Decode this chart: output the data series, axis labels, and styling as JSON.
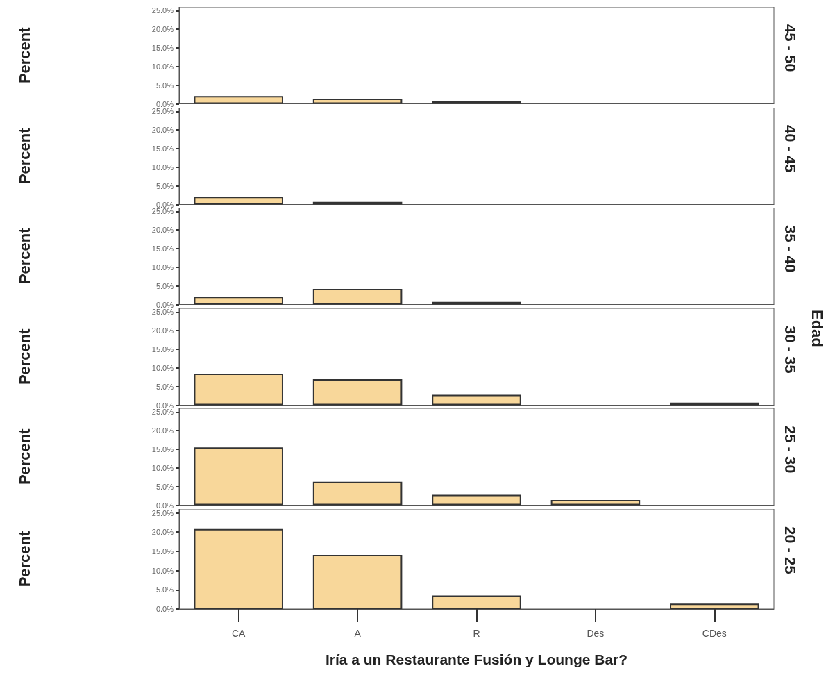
{
  "chart_data": [
    {
      "type": "bar",
      "ylabel": "Percent",
      "y2label": "45 - 50",
      "values": [
        2.1,
        1.4,
        0.7,
        null,
        null
      ],
      "color": "#f8d79a",
      "ylim": [
        0,
        26
      ],
      "yticks": [
        {
          "value": 0,
          "label": "0.0%"
        },
        {
          "value": 5,
          "label": "5.0%"
        },
        {
          "value": 10,
          "label": "10.0%"
        },
        {
          "value": 15,
          "label": "15.0%"
        },
        {
          "value": 20,
          "label": "20.0%"
        },
        {
          "value": 25,
          "label": "25.0%"
        }
      ],
      "tick_labels": "y"
    },
    {
      "type": "bar",
      "ylabel": "Percent",
      "y2label": "40 - 45",
      "values": [
        2.1,
        0.7,
        null,
        null,
        null
      ],
      "color": "#f8d79a",
      "ylim": [
        0,
        26
      ],
      "yticks": [
        {
          "value": 0,
          "label": "0.0%"
        },
        {
          "value": 5,
          "label": "5.0%"
        },
        {
          "value": 10,
          "label": "10.0%"
        },
        {
          "value": 15,
          "label": "15.0%"
        },
        {
          "value": 20,
          "label": "20.0%"
        },
        {
          "value": 25,
          "label": "25.0%"
        }
      ],
      "tick_labels": "y"
    },
    {
      "type": "bar",
      "ylabel": "Percent",
      "y2label": "35 - 40",
      "values": [
        2.1,
        4.2,
        0.7,
        null,
        null
      ],
      "color": "#f8d79a",
      "ylim": [
        0,
        26
      ],
      "yticks": [
        {
          "value": 0,
          "label": "0.0%"
        },
        {
          "value": 5,
          "label": "5.0%"
        },
        {
          "value": 10,
          "label": "10.0%"
        },
        {
          "value": 15,
          "label": "15.0%"
        },
        {
          "value": 20,
          "label": "20.0%"
        },
        {
          "value": 25,
          "label": "25.0%"
        }
      ],
      "tick_labels": "y"
    },
    {
      "type": "bar",
      "ylabel": "Percent",
      "y2label": "30 - 35",
      "annotations": [
        "Edad"
      ],
      "values": [
        8.5,
        7.0,
        2.8,
        null,
        0.7
      ],
      "color": "#f8d79a",
      "ylim": [
        0,
        26
      ],
      "yticks": [
        {
          "value": 0,
          "label": "0.0%"
        },
        {
          "value": 5,
          "label": "5.0%"
        },
        {
          "value": 10,
          "label": "10.0%"
        },
        {
          "value": 15,
          "label": "15.0%"
        },
        {
          "value": 20,
          "label": "20.0%"
        },
        {
          "value": 25,
          "label": "25.0%"
        }
      ],
      "tick_labels": "y"
    },
    {
      "type": "bar",
      "ylabel": "Percent",
      "y2label": "25 - 30",
      "values": [
        15.5,
        6.3,
        2.8,
        1.4,
        null
      ],
      "color": "#f8d79a",
      "ylim": [
        0,
        26
      ],
      "yticks": [
        {
          "value": 0,
          "label": "0.0%"
        },
        {
          "value": 5,
          "label": "5.0%"
        },
        {
          "value": 10,
          "label": "10.0%"
        },
        {
          "value": 15,
          "label": "15.0%"
        },
        {
          "value": 20,
          "label": "20.0%"
        },
        {
          "value": 25,
          "label": "25.0%"
        }
      ],
      "tick_labels": "y"
    },
    {
      "type": "bar",
      "ylabel": "Percent",
      "y2label": "20 - 25",
      "xlabel": "Iría a un Restaurante Fusión y Lounge Bar?",
      "categories": [
        "CA",
        "A",
        "R",
        "Des",
        "CDes"
      ],
      "values": [
        20.8,
        14.1,
        3.5,
        null,
        1.4
      ],
      "color": "#f8d79a",
      "ylim": [
        0,
        26
      ],
      "yticks": [
        {
          "value": 0,
          "label": "0.0%"
        },
        {
          "value": 5,
          "label": "5.0%"
        },
        {
          "value": 10,
          "label": "10.0%"
        },
        {
          "value": 15,
          "label": "15.0%"
        },
        {
          "value": 20,
          "label": "20.0%"
        },
        {
          "value": 25,
          "label": "25.0%"
        }
      ]
    }
  ]
}
